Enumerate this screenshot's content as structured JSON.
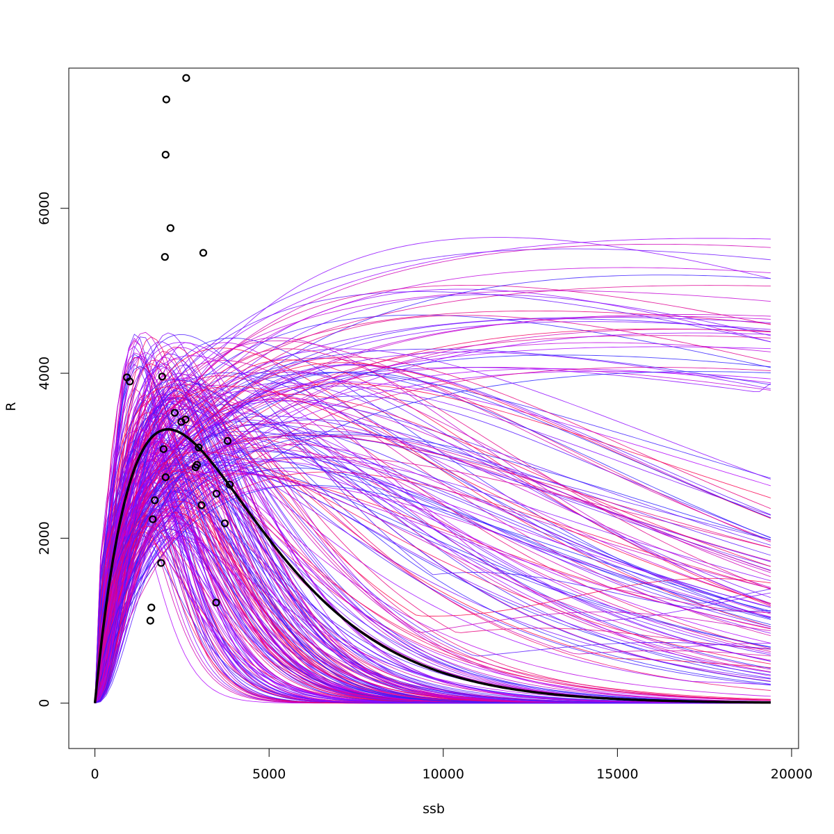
{
  "chart_data": {
    "type": "line",
    "title": "",
    "xlabel": "ssb",
    "ylabel": "R",
    "xlim": [
      -750,
      20200
    ],
    "ylim": [
      -550,
      7700
    ],
    "x_ticks": [
      0,
      5000,
      10000,
      15000,
      20000
    ],
    "x_tick_labels": [
      "0",
      "5000",
      "10000",
      "15000",
      "20000"
    ],
    "y_ticks": [
      0,
      2000,
      4000,
      6000
    ],
    "y_tick_labels": [
      "0",
      "2000",
      "4000",
      "6000"
    ],
    "grid": false,
    "legend": "none",
    "colors": {
      "fitted_curve": "#000000",
      "observations": "#000000",
      "bootstrap_gradient_start": "#ff0044",
      "bootstrap_gradient_mid": "#b000ff",
      "bootstrap_gradient_end": "#2222ff"
    },
    "fitted_curve": {
      "form": "R = a*ssb*exp(-b*ssb)",
      "peak_ssb": 2100,
      "peak_R": 3320,
      "x_max": 19400
    },
    "bootstrap_curves": {
      "count": 300,
      "description": "resampled stock-recruitment fits, coloured from red/magenta to blue",
      "x_max": 19400
    },
    "points": [
      {
        "x": 2620,
        "y": 7580
      },
      {
        "x": 2050,
        "y": 7320
      },
      {
        "x": 2030,
        "y": 6650
      },
      {
        "x": 2170,
        "y": 5760
      },
      {
        "x": 3110,
        "y": 5460
      },
      {
        "x": 2010,
        "y": 5410
      },
      {
        "x": 920,
        "y": 3950
      },
      {
        "x": 1000,
        "y": 3900
      },
      {
        "x": 1930,
        "y": 3960
      },
      {
        "x": 2290,
        "y": 3520
      },
      {
        "x": 2600,
        "y": 3440
      },
      {
        "x": 2480,
        "y": 3410
      },
      {
        "x": 3810,
        "y": 3180
      },
      {
        "x": 2980,
        "y": 3100
      },
      {
        "x": 1970,
        "y": 3080
      },
      {
        "x": 2930,
        "y": 2890
      },
      {
        "x": 2890,
        "y": 2860
      },
      {
        "x": 2030,
        "y": 2740
      },
      {
        "x": 3870,
        "y": 2650
      },
      {
        "x": 3490,
        "y": 2540
      },
      {
        "x": 1720,
        "y": 2460
      },
      {
        "x": 3060,
        "y": 2400
      },
      {
        "x": 1660,
        "y": 2230
      },
      {
        "x": 3730,
        "y": 2180
      },
      {
        "x": 1900,
        "y": 1700
      },
      {
        "x": 1620,
        "y": 1160
      },
      {
        "x": 3480,
        "y": 1220
      },
      {
        "x": 1590,
        "y": 1000
      }
    ]
  }
}
